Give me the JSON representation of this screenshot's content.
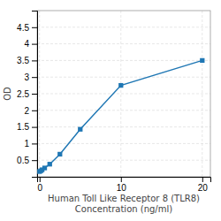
{
  "chart_data": {
    "type": "line",
    "x": [
      0,
      0.156,
      0.313,
      0.625,
      1.25,
      2.5,
      5,
      10,
      20
    ],
    "values": [
      0.158,
      0.182,
      0.211,
      0.265,
      0.38,
      0.68,
      1.43,
      2.75,
      3.5
    ],
    "xlabel": [
      "Human Toll Like Receptor 8 (TLR8)",
      "Concentration (ng/ml)"
    ],
    "ylabel": "OD",
    "xlim": [
      -0.3,
      21
    ],
    "ylim": [
      0,
      5
    ],
    "xticks": [
      0,
      10,
      20
    ],
    "yticks": [
      0.5,
      1,
      1.5,
      2,
      2.5,
      3,
      3.5,
      4,
      4.5
    ],
    "marker": "square",
    "grid": true
  }
}
